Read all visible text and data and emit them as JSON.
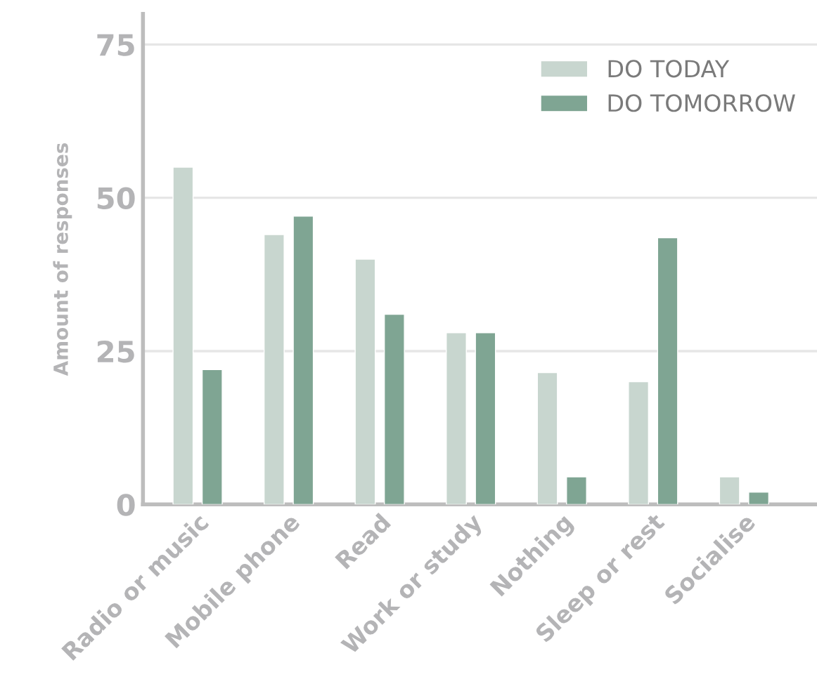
{
  "chart_data": {
    "type": "bar",
    "ylabel": "Amount of responses",
    "categories": [
      "Radio or music",
      "Mobile phone",
      "Read",
      "Work or study",
      "Nothing",
      "Sleep or rest",
      "Socialise"
    ],
    "series": [
      {
        "name": "DO TODAY",
        "color": "#c8d6cf",
        "values": [
          55,
          44,
          40,
          28,
          21.5,
          20,
          4.5
        ]
      },
      {
        "name": "DO TOMORROW",
        "color": "#7fa593",
        "values": [
          22,
          47,
          31,
          28,
          4.5,
          43.5,
          2
        ]
      }
    ],
    "ylim": [
      0,
      80
    ],
    "yticks": [
      0,
      25,
      50,
      75
    ],
    "grid": "y",
    "legend": "top right"
  }
}
